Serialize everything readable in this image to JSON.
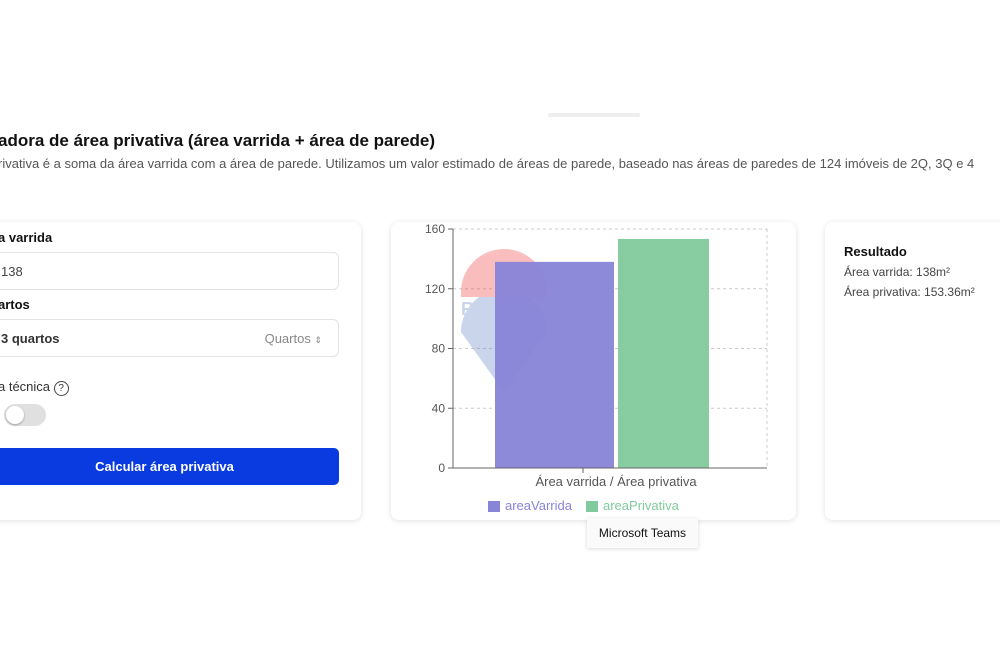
{
  "header": {
    "title": "adora de área privativa (área varrida + área de parede)",
    "description": "rivativa é a soma da área varrida com a área de parede. Utilizamos um valor estimado de áreas de parede, baseado nas áreas de paredes de 124 imóveis de 2Q, 3Q e 4"
  },
  "form": {
    "area_label": "a varrida",
    "area_value": "138",
    "rooms_label": "artos",
    "rooms_value": "3 quartos",
    "rooms_unit": "Quartos",
    "tech_label": "a técnica",
    "tech_help": "?",
    "tech_toggle_on": false,
    "submit_label": "Calcular área privativa"
  },
  "chart_data": {
    "type": "bar",
    "categories": [
      "Área varrida / Área privativa"
    ],
    "series": [
      {
        "name": "areaVarrida",
        "values": [
          138
        ],
        "color": "#8884d8"
      },
      {
        "name": "areaPrivativa",
        "values": [
          153.36
        ],
        "color": "#82ca9d"
      }
    ],
    "ylim": [
      0,
      160
    ],
    "yticks": [
      "0",
      "40",
      "80",
      "120",
      "160"
    ],
    "grid": true,
    "legend": "bottom",
    "watermark": "RE/MAX"
  },
  "result": {
    "title": "Resultado",
    "area_varrida": "Área varrida: 138m²",
    "area_privativa": "Área privativa: 153.36m²"
  },
  "tooltip": "Microsoft Teams"
}
